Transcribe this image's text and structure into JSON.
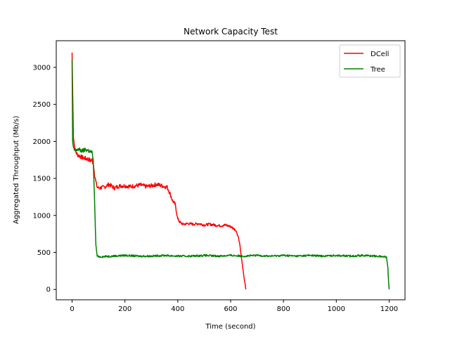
{
  "chart_data": {
    "type": "line",
    "title": "Network Capacity Test",
    "xlabel": "Time (second)",
    "ylabel": "Aggregated Throughput (Mb/s)",
    "xlim": [
      -60,
      1260
    ],
    "ylim": [
      -140,
      3360
    ],
    "xticks": [
      0,
      200,
      400,
      600,
      800,
      1000,
      1200
    ],
    "yticks": [
      0,
      500,
      1000,
      1500,
      2000,
      2500,
      3000
    ],
    "grid": false,
    "legend_position": "top-right",
    "series": [
      {
        "name": "DCell",
        "color": "#ff0000",
        "x": [
          0,
          2,
          5,
          10,
          15,
          20,
          30,
          40,
          50,
          60,
          70,
          75,
          80,
          85,
          90,
          95,
          100,
          120,
          140,
          160,
          180,
          200,
          220,
          240,
          260,
          280,
          300,
          320,
          340,
          360,
          370,
          380,
          390,
          400,
          410,
          420,
          440,
          460,
          480,
          500,
          520,
          540,
          560,
          580,
          600,
          620,
          630,
          635,
          640,
          645,
          650,
          655,
          658
        ],
        "y": [
          3200,
          2700,
          2050,
          1900,
          1850,
          1820,
          1800,
          1780,
          1770,
          1760,
          1740,
          1750,
          1700,
          1550,
          1450,
          1380,
          1370,
          1380,
          1420,
          1370,
          1400,
          1400,
          1390,
          1400,
          1410,
          1390,
          1400,
          1420,
          1400,
          1380,
          1300,
          1200,
          1150,
          950,
          900,
          880,
          890,
          880,
          890,
          870,
          880,
          870,
          860,
          870,
          850,
          800,
          700,
          600,
          450,
          320,
          180,
          60,
          0
        ]
      },
      {
        "name": "Tree",
        "color": "#008000",
        "x": [
          0,
          2,
          5,
          10,
          15,
          20,
          30,
          40,
          50,
          60,
          70,
          75,
          80,
          85,
          90,
          95,
          100,
          150,
          200,
          250,
          300,
          350,
          400,
          450,
          500,
          550,
          600,
          650,
          700,
          750,
          800,
          850,
          900,
          950,
          1000,
          1050,
          1100,
          1150,
          1190,
          1195,
          1198,
          1200
        ],
        "y": [
          3100,
          2000,
          1900,
          1880,
          1870,
          1900,
          1880,
          1870,
          1890,
          1880,
          1860,
          1850,
          1750,
          1200,
          600,
          450,
          440,
          450,
          460,
          450,
          450,
          460,
          450,
          450,
          460,
          450,
          460,
          450,
          460,
          450,
          460,
          450,
          460,
          450,
          460,
          450,
          460,
          450,
          440,
          300,
          100,
          0
        ]
      }
    ]
  }
}
